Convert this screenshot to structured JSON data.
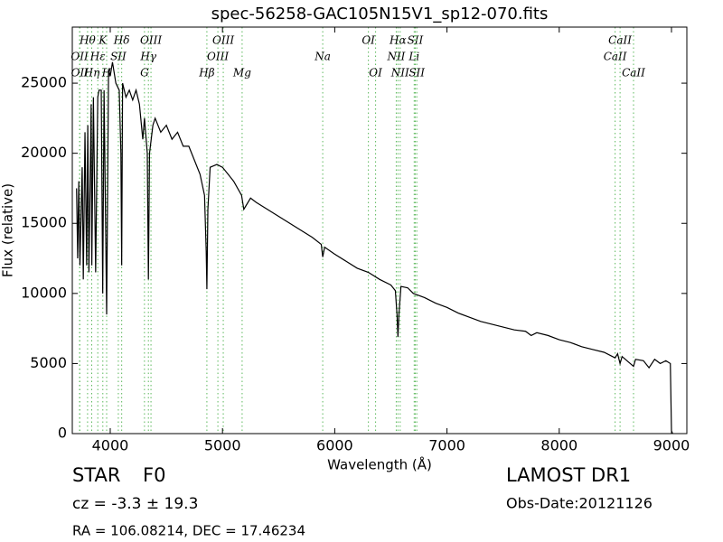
{
  "chart_data": {
    "type": "line",
    "title": "spec-56258-GAC105N15V1_sp12-070.fits",
    "x_label": "Wavelength (Å)",
    "y_label": "Flux (relative)",
    "xlim": [
      3662,
      9137
    ],
    "ylim": [
      0,
      29000
    ],
    "xticks": [
      4000,
      5000,
      6000,
      7000,
      8000,
      9000
    ],
    "yticks": [
      0,
      5000,
      10000,
      15000,
      20000,
      25000
    ],
    "color": "#000000",
    "line_color": "#5cb85c",
    "x": [
      3700,
      3710,
      3720,
      3730,
      3750,
      3760,
      3775,
      3790,
      3800,
      3810,
      3830,
      3836,
      3850,
      3870,
      3889,
      3900,
      3920,
      3933,
      3945,
      3968,
      3985,
      4000,
      4020,
      4050,
      4080,
      4095,
      4102,
      4110,
      4140,
      4170,
      4200,
      4230,
      4260,
      4290,
      4305,
      4330,
      4340,
      4350,
      4380,
      4400,
      4450,
      4500,
      4550,
      4600,
      4650,
      4700,
      4750,
      4800,
      4840,
      4855,
      4861,
      4870,
      4890,
      4950,
      5000,
      5050,
      5100,
      5170,
      5190,
      5250,
      5300,
      5400,
      5500,
      5600,
      5700,
      5800,
      5880,
      5893,
      5910,
      6000,
      6100,
      6200,
      6300,
      6400,
      6500,
      6540,
      6555,
      6563,
      6572,
      6590,
      6650,
      6700,
      6800,
      6900,
      7000,
      7100,
      7200,
      7300,
      7400,
      7500,
      7600,
      7700,
      7750,
      7800,
      7900,
      8000,
      8100,
      8200,
      8300,
      8400,
      8498,
      8520,
      8542,
      8560,
      8662,
      8680,
      8750,
      8800,
      8850,
      8900,
      8950,
      8990,
      9000,
      9010
    ],
    "values": [
      17500,
      12500,
      18000,
      12000,
      19000,
      11000,
      21500,
      12000,
      22000,
      11500,
      23500,
      12000,
      24000,
      11500,
      24000,
      24500,
      24500,
      10000,
      24500,
      8500,
      26000,
      25500,
      26500,
      25000,
      24500,
      20000,
      12000,
      25000,
      24000,
      24500,
      23800,
      24500,
      23500,
      21000,
      22500,
      20000,
      11000,
      20000,
      22000,
      22500,
      21500,
      22000,
      21000,
      21500,
      20500,
      20500,
      19500,
      18500,
      17000,
      13000,
      10300,
      16000,
      19000,
      19200,
      19000,
      18500,
      18000,
      17000,
      16000,
      16800,
      16500,
      16000,
      15500,
      15000,
      14500,
      14000,
      13500,
      12600,
      13300,
      12800,
      12300,
      11800,
      11500,
      11000,
      10600,
      10200,
      8500,
      6900,
      8500,
      10500,
      10400,
      10000,
      9700,
      9300,
      9000,
      8600,
      8300,
      8000,
      7800,
      7600,
      7400,
      7300,
      7000,
      7200,
      7000,
      6700,
      6500,
      6200,
      6000,
      5800,
      5400,
      5700,
      5000,
      5500,
      4800,
      5300,
      5200,
      4700,
      5300,
      5000,
      5200,
      5000,
      200,
      0
    ],
    "lines": [
      {
        "name": "OII",
        "wavelength": 3727,
        "row": 2
      },
      {
        "name": "OII",
        "wavelength": 3729,
        "row": 3
      },
      {
        "name": "Hθ",
        "wavelength": 3798,
        "row": 1
      },
      {
        "name": "Hη",
        "wavelength": 3835,
        "row": 3
      },
      {
        "name": "Hε",
        "wavelength": 3889,
        "row": 2
      },
      {
        "name": "K",
        "wavelength": 3934,
        "row": 1
      },
      {
        "name": "H",
        "wavelength": 3968,
        "row": 3
      },
      {
        "name": "SII",
        "wavelength": 4072,
        "row": 2
      },
      {
        "name": "Hδ",
        "wavelength": 4102,
        "row": 1
      },
      {
        "name": "G",
        "wavelength": 4305,
        "row": 3
      },
      {
        "name": "Hγ",
        "wavelength": 4340,
        "row": 2
      },
      {
        "name": "OIII",
        "wavelength": 4363,
        "row": 1
      },
      {
        "name": "Hβ",
        "wavelength": 4861,
        "row": 3
      },
      {
        "name": "OIII",
        "wavelength": 4959,
        "row": 2
      },
      {
        "name": "OIII",
        "wavelength": 5007,
        "row": 1
      },
      {
        "name": "Mg",
        "wavelength": 5175,
        "row": 3
      },
      {
        "name": "Na",
        "wavelength": 5893,
        "row": 2
      },
      {
        "name": "OI",
        "wavelength": 6300,
        "row": 1
      },
      {
        "name": "OI",
        "wavelength": 6364,
        "row": 3
      },
      {
        "name": "NII",
        "wavelength": 6548,
        "row": 2
      },
      {
        "name": "Hα",
        "wavelength": 6563,
        "row": 1
      },
      {
        "name": "NII",
        "wavelength": 6583,
        "row": 3
      },
      {
        "name": "Li",
        "wavelength": 6708,
        "row": 2
      },
      {
        "name": "SII",
        "wavelength": 6717,
        "row": 1
      },
      {
        "name": "SII",
        "wavelength": 6731,
        "row": 3
      },
      {
        "name": "CaII",
        "wavelength": 8498,
        "row": 2
      },
      {
        "name": "CaII",
        "wavelength": 8542,
        "row": 1
      },
      {
        "name": "CaII",
        "wavelength": 8662,
        "row": 3
      }
    ],
    "footer": {
      "class": "STAR",
      "subclass": "F0",
      "cz": "cz = -3.3 ± 19.3",
      "coords": "RA = 106.08214, DEC = 17.46234",
      "survey": "LAMOST DR1",
      "obs_date": "Obs-Date:20121126"
    }
  }
}
